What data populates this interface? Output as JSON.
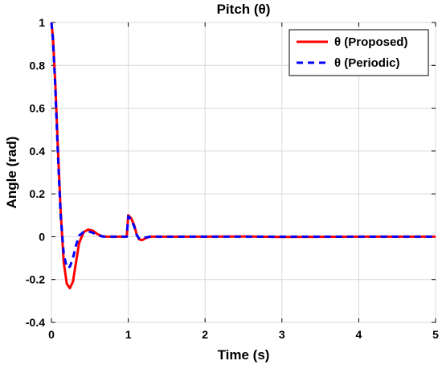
{
  "chart_data": {
    "type": "line",
    "title": "Pitch (θ)",
    "xlabel": "Time (s)",
    "ylabel": "Angle (rad)",
    "xlim": [
      0,
      5
    ],
    "ylim": [
      -0.4,
      1
    ],
    "x_ticks": [
      0,
      1,
      2,
      3,
      4,
      5
    ],
    "x_tick_labels": [
      "0",
      "1",
      "2",
      "3",
      "4",
      "5"
    ],
    "y_ticks": [
      -0.4,
      -0.2,
      0,
      0.2,
      0.4,
      0.6,
      0.8,
      1
    ],
    "y_tick_labels": [
      "-0.4",
      "-0.2",
      "0",
      "0.2",
      "0.4",
      "0.6",
      "0.8",
      "1"
    ],
    "grid": true,
    "legend_position": "top-right",
    "series": [
      {
        "name": "θ (Proposed)",
        "color": "#ff0000",
        "line_style": "solid",
        "points": [
          [
            0,
            1
          ],
          [
            0.02,
            0.93
          ],
          [
            0.05,
            0.72
          ],
          [
            0.08,
            0.45
          ],
          [
            0.12,
            0.12
          ],
          [
            0.16,
            -0.12
          ],
          [
            0.2,
            -0.22
          ],
          [
            0.24,
            -0.24
          ],
          [
            0.28,
            -0.21
          ],
          [
            0.32,
            -0.12
          ],
          [
            0.36,
            -0.03
          ],
          [
            0.42,
            0.022
          ],
          [
            0.48,
            0.033
          ],
          [
            0.54,
            0.028
          ],
          [
            0.6,
            0.012
          ],
          [
            0.66,
            0.002
          ],
          [
            0.72,
            0
          ],
          [
            0.8,
            0
          ],
          [
            0.9,
            0
          ],
          [
            0.98,
            0
          ],
          [
            1.0,
            0.1
          ],
          [
            1.04,
            0.085
          ],
          [
            1.08,
            0.05
          ],
          [
            1.11,
            0.01
          ],
          [
            1.14,
            -0.012
          ],
          [
            1.18,
            -0.016
          ],
          [
            1.22,
            -0.008
          ],
          [
            1.28,
            0
          ],
          [
            1.4,
            0
          ],
          [
            2.0,
            0
          ],
          [
            2.5,
            0.001
          ],
          [
            3.0,
            -0.001
          ],
          [
            4.0,
            0
          ],
          [
            5.0,
            0
          ]
        ]
      },
      {
        "name": "θ (Periodic)",
        "color": "#0000ff",
        "line_style": "dashed",
        "points": [
          [
            0,
            1
          ],
          [
            0.02,
            0.92
          ],
          [
            0.05,
            0.7
          ],
          [
            0.08,
            0.42
          ],
          [
            0.12,
            0.1
          ],
          [
            0.16,
            -0.08
          ],
          [
            0.2,
            -0.145
          ],
          [
            0.24,
            -0.14
          ],
          [
            0.28,
            -0.1
          ],
          [
            0.32,
            -0.04
          ],
          [
            0.36,
            0.005
          ],
          [
            0.42,
            0.022
          ],
          [
            0.48,
            0.025
          ],
          [
            0.54,
            0.018
          ],
          [
            0.6,
            0.008
          ],
          [
            0.66,
            0.001
          ],
          [
            0.72,
            0
          ],
          [
            0.8,
            0
          ],
          [
            0.9,
            0
          ],
          [
            0.98,
            0
          ],
          [
            1.0,
            0.095
          ],
          [
            1.04,
            0.08
          ],
          [
            1.08,
            0.045
          ],
          [
            1.11,
            0.008
          ],
          [
            1.14,
            -0.008
          ],
          [
            1.18,
            -0.01
          ],
          [
            1.22,
            -0.004
          ],
          [
            1.28,
            0
          ],
          [
            1.4,
            0
          ],
          [
            2.0,
            0
          ],
          [
            2.5,
            0
          ],
          [
            3.0,
            0
          ],
          [
            4.0,
            0
          ],
          [
            5.0,
            0
          ]
        ]
      }
    ]
  }
}
